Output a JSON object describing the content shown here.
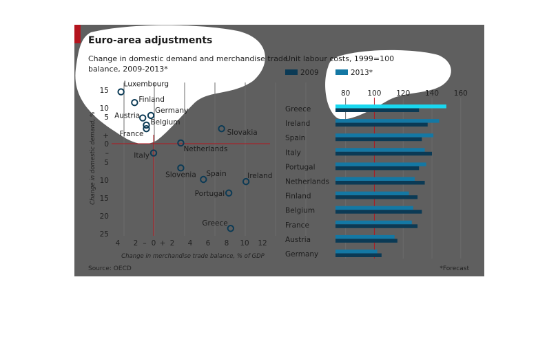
{
  "header": {
    "title": "Euro-area adjustments",
    "left_subtitle_line1": "Change in domestic demand and merchandise trade",
    "left_subtitle_line2": "balance, 2009-2013*",
    "right_subtitle": "Unit labour costs, 1999=100",
    "source": "Source: OECD",
    "footnote": "*Forecast"
  },
  "colors": {
    "panel": "#5f5f5f",
    "accent": "#b4141e",
    "series_2009": "#0b3a55",
    "series_2013": "#1478a4",
    "zero_line": "#b4141e",
    "highlight_greece": "#19d8f0"
  },
  "chart_data": [
    {
      "type": "scatter",
      "title": "Change in domestic demand and merchandise trade balance, 2009-2013*",
      "xlabel": "Change in merchandise trade balance, % of GDP",
      "ylabel": "Change in domestic demand, %",
      "x_tick_labels": [
        "4",
        "2",
        "–",
        "0",
        "+",
        "2",
        "4",
        "6",
        "8",
        "10",
        "12"
      ],
      "y_tick_labels": [
        "15",
        "10",
        "5",
        "+",
        "0",
        "–",
        "5",
        "10",
        "15",
        "20",
        "25"
      ],
      "xlim": [
        -4,
        12
      ],
      "ylim": [
        -25,
        15
      ],
      "points": [
        {
          "name": "Luxembourg",
          "x": -3.6,
          "y": 14.5
        },
        {
          "name": "Finland",
          "x": -2.1,
          "y": 11.5
        },
        {
          "name": "Austria",
          "x": -1.2,
          "y": 7.2
        },
        {
          "name": "Germany",
          "x": -0.3,
          "y": 7.9
        },
        {
          "name": "Belgium",
          "x": -0.8,
          "y": 5.2
        },
        {
          "name": "France",
          "x": -0.8,
          "y": 4.2
        },
        {
          "name": "Slovakia",
          "x": 7.5,
          "y": 4.2
        },
        {
          "name": "Netherlands",
          "x": 3.0,
          "y": 0.2
        },
        {
          "name": "Italy",
          "x": 0.0,
          "y": -2.6
        },
        {
          "name": "Slovenia",
          "x": 3.0,
          "y": -6.8
        },
        {
          "name": "Spain",
          "x": 5.5,
          "y": -10.0
        },
        {
          "name": "Ireland",
          "x": 10.2,
          "y": -10.6
        },
        {
          "name": "Portugal",
          "x": 8.3,
          "y": -13.8
        },
        {
          "name": "Greece",
          "x": 8.5,
          "y": -23.7
        }
      ]
    },
    {
      "type": "bar",
      "title": "Unit labour costs, 1999=100",
      "categories": [
        "Greece",
        "Ireland",
        "Spain",
        "Italy",
        "Portugal",
        "Netherlands",
        "Finland",
        "Belgium",
        "France",
        "Austria",
        "Germany"
      ],
      "series": [
        {
          "name": "2009",
          "values": [
            131,
            137,
            133,
            140,
            131,
            135,
            130,
            133,
            130,
            116,
            105
          ]
        },
        {
          "name": "2013*",
          "values": [
            150,
            145,
            141,
            135,
            136,
            128,
            124,
            127,
            126,
            114,
            102
          ]
        }
      ],
      "x_tick_labels": [
        "80",
        "100",
        "120",
        "140",
        "160"
      ],
      "xlim": [
        73,
        168
      ],
      "reference_line": 100,
      "legend_placement": "top-left"
    }
  ]
}
